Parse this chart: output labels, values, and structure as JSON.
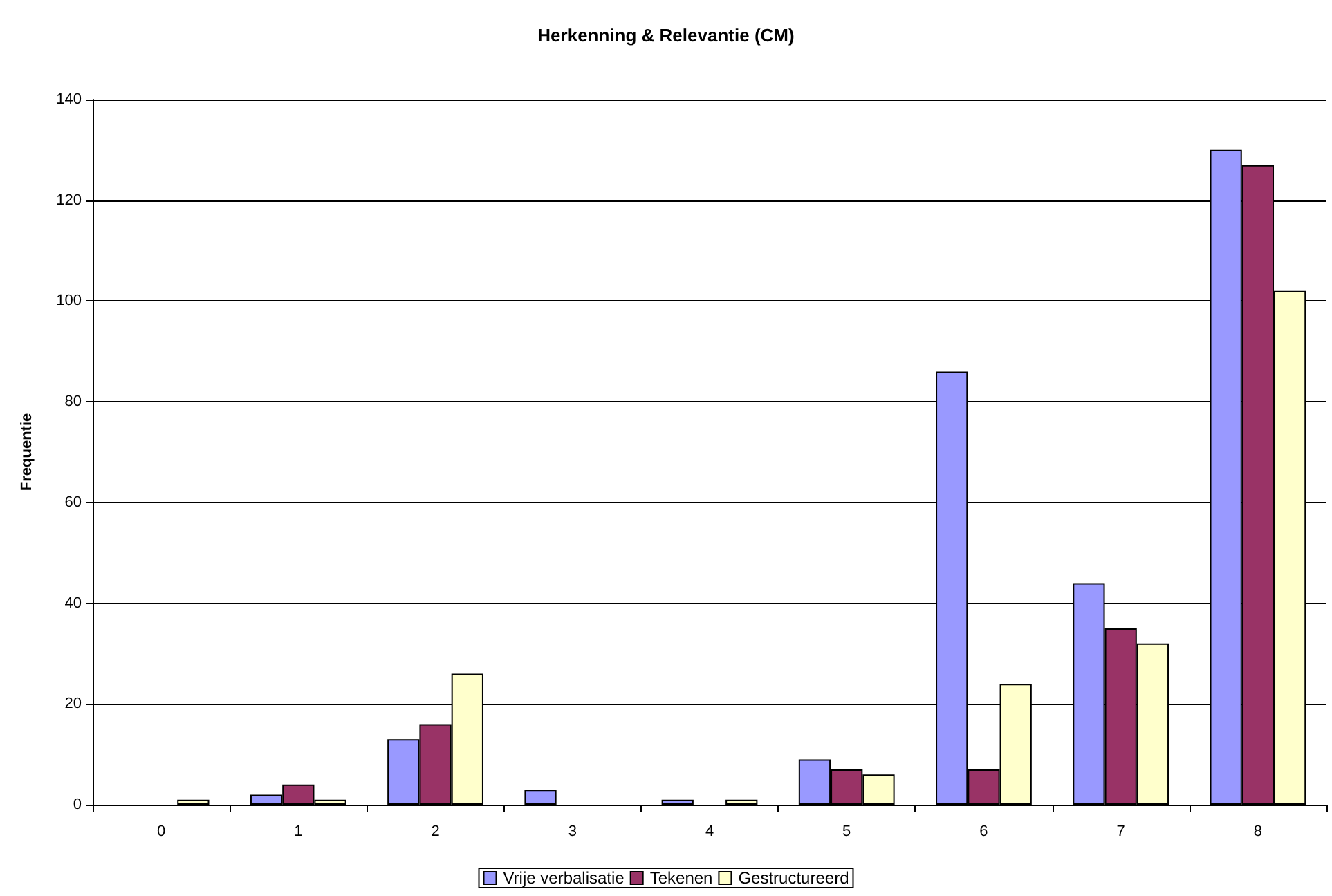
{
  "chart_data": {
    "type": "bar",
    "title": "Herkenning & Relevantie (CM)",
    "ylabel": "Frequentie",
    "categories": [
      "0",
      "1",
      "2",
      "3",
      "4",
      "5",
      "6",
      "7",
      "8"
    ],
    "series": [
      {
        "name": "Vrije verbalisatie",
        "color": "#9999ff",
        "values": [
          0,
          2,
          13,
          3,
          1,
          9,
          86,
          44,
          130
        ]
      },
      {
        "name": "Tekenen",
        "color": "#993366",
        "values": [
          0,
          4,
          16,
          0,
          0,
          7,
          7,
          35,
          127
        ]
      },
      {
        "name": "Gestructureerd",
        "color": "#ffffcc",
        "values": [
          1,
          1,
          26,
          0,
          1,
          6,
          24,
          32,
          102
        ]
      }
    ],
    "ylim": [
      0,
      140
    ],
    "yticks": [
      0,
      20,
      40,
      60,
      80,
      100,
      120,
      140
    ],
    "grid": "y",
    "legend": "bottom"
  }
}
